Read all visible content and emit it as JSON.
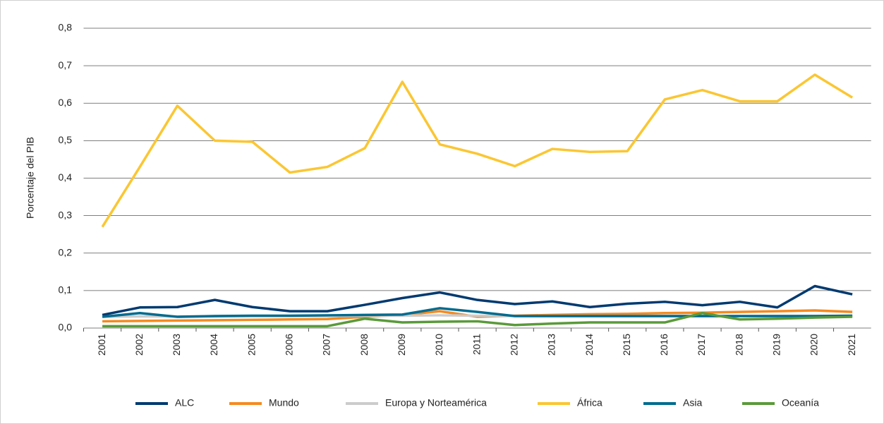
{
  "chart_data": {
    "type": "line",
    "y_label": "Porcentaje del PIB",
    "categories": [
      "2001",
      "2002",
      "2003",
      "2004",
      "2005",
      "2006",
      "2007",
      "2008",
      "2009",
      "2010",
      "2011",
      "2012",
      "2013",
      "2014",
      "2015",
      "2016",
      "2017",
      "2018",
      "2019",
      "2020",
      "2021"
    ],
    "ylim": [
      0,
      0.8
    ],
    "yticks": [
      {
        "value": 0,
        "label": "0,0"
      },
      {
        "value": 0.1,
        "label": "0,1"
      },
      {
        "value": 0.2,
        "label": "0,2"
      },
      {
        "value": 0.3,
        "label": "0,3"
      },
      {
        "value": 0.4,
        "label": "0,4"
      },
      {
        "value": 0.5,
        "label": "0,5"
      },
      {
        "value": 0.6,
        "label": "0,6"
      },
      {
        "value": 0.7,
        "label": "0,7"
      },
      {
        "value": 0.8,
        "label": "0,8"
      }
    ],
    "grid": true,
    "legend": "bottom",
    "series": [
      {
        "name": "ALC",
        "color": "#003a70",
        "values": [
          0.035,
          0.055,
          0.056,
          0.075,
          0.056,
          0.045,
          0.045,
          0.062,
          0.08,
          0.095,
          0.075,
          0.064,
          0.071,
          0.056,
          0.065,
          0.07,
          0.061,
          0.07,
          0.055,
          0.112,
          0.09
        ]
      },
      {
        "name": "Mundo",
        "color": "#f58a1f",
        "values": [
          0.018,
          0.019,
          0.02,
          0.021,
          0.022,
          0.023,
          0.024,
          0.03,
          0.035,
          0.045,
          0.03,
          0.033,
          0.035,
          0.037,
          0.038,
          0.04,
          0.041,
          0.043,
          0.045,
          0.047,
          0.043
        ]
      },
      {
        "name": "Europa y Norteamérica",
        "color": "#cccccc",
        "values": [
          0.03,
          0.031,
          0.031,
          0.031,
          0.032,
          0.032,
          0.032,
          0.033,
          0.033,
          0.034,
          0.033,
          0.032,
          0.032,
          0.032,
          0.032,
          0.032,
          0.032,
          0.032,
          0.032,
          0.032,
          0.032
        ]
      },
      {
        "name": "África",
        "color": "#fbc632",
        "values": [
          0.27,
          0.43,
          0.593,
          0.5,
          0.497,
          0.415,
          0.43,
          0.48,
          0.657,
          0.49,
          0.465,
          0.432,
          0.478,
          0.47,
          0.472,
          0.61,
          0.635,
          0.605,
          0.605,
          0.676,
          0.615
        ]
      },
      {
        "name": "Asia",
        "color": "#006b8f",
        "values": [
          0.03,
          0.04,
          0.03,
          0.032,
          0.033,
          0.033,
          0.034,
          0.035,
          0.036,
          0.053,
          0.043,
          0.032,
          0.032,
          0.032,
          0.032,
          0.032,
          0.032,
          0.032,
          0.032,
          0.032,
          0.033
        ]
      },
      {
        "name": "Oceanía",
        "color": "#5a9a3a",
        "values": [
          0.005,
          0.005,
          0.005,
          0.005,
          0.005,
          0.005,
          0.005,
          0.025,
          0.015,
          0.017,
          0.018,
          0.008,
          0.012,
          0.015,
          0.015,
          0.015,
          0.04,
          0.023,
          0.025,
          0.028,
          0.03
        ]
      }
    ]
  }
}
